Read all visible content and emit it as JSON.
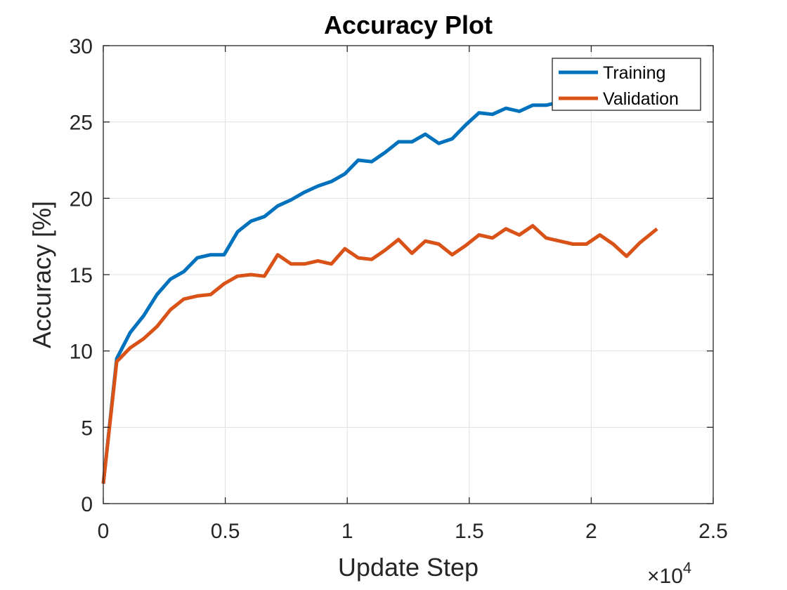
{
  "chart_data": {
    "type": "line",
    "title": "Accuracy Plot",
    "xlabel": "Update Step",
    "ylabel": "Accuracy [%]",
    "x_multiplier_label": {
      "base": "×10",
      "exponent": "4"
    },
    "xlim": [
      0,
      25000
    ],
    "ylim": [
      0,
      30
    ],
    "xticks": [
      0,
      5000,
      10000,
      15000,
      20000,
      25000
    ],
    "xtick_labels": [
      "0",
      "0.5",
      "1",
      "1.5",
      "2",
      "2.5"
    ],
    "yticks": [
      0,
      5,
      10,
      15,
      20,
      25,
      30
    ],
    "ytick_labels": [
      "0",
      "5",
      "10",
      "15",
      "20",
      "25",
      "30"
    ],
    "grid": true,
    "legend_position": "top-right",
    "series": [
      {
        "name": "Training",
        "color": "#0072BD",
        "x": [
          0,
          550,
          1100,
          1650,
          2200,
          2750,
          3300,
          3850,
          4400,
          4950,
          5500,
          6050,
          6600,
          7150,
          7700,
          8250,
          8800,
          9350,
          9900,
          10450,
          11000,
          11550,
          12100,
          12650,
          13200,
          13750,
          14300,
          14850,
          15400,
          15950,
          16500,
          17050,
          17600,
          18150,
          18700,
          19250,
          19800,
          20350,
          20900,
          21450,
          22000,
          22700
        ],
        "y": [
          1.3,
          9.5,
          11.2,
          12.3,
          13.7,
          14.7,
          15.2,
          16.1,
          16.3,
          16.3,
          17.8,
          18.5,
          18.8,
          19.5,
          19.9,
          20.4,
          20.8,
          21.1,
          21.6,
          22.5,
          22.4,
          23.0,
          23.7,
          23.7,
          24.2,
          23.6,
          23.9,
          24.8,
          25.6,
          25.5,
          25.9,
          25.7,
          26.1,
          26.1,
          26.3,
          26.6,
          26.4,
          26.9,
          26.8,
          27.2,
          27.4,
          27.6
        ]
      },
      {
        "name": "Validation",
        "color": "#D95319",
        "x": [
          0,
          550,
          1100,
          1650,
          2200,
          2750,
          3300,
          3850,
          4400,
          4950,
          5500,
          6050,
          6600,
          7150,
          7700,
          8250,
          8800,
          9350,
          9900,
          10450,
          11000,
          11550,
          12100,
          12650,
          13200,
          13750,
          14300,
          14850,
          15400,
          15950,
          16500,
          17050,
          17600,
          18150,
          18700,
          19250,
          19800,
          20350,
          20900,
          21450,
          22000,
          22700
        ],
        "y": [
          1.3,
          9.3,
          10.2,
          10.8,
          11.6,
          12.7,
          13.4,
          13.6,
          13.7,
          14.4,
          14.9,
          15.0,
          14.9,
          16.3,
          15.7,
          15.7,
          15.9,
          15.7,
          16.7,
          16.1,
          16.0,
          16.6,
          17.3,
          16.4,
          17.2,
          17.0,
          16.3,
          16.9,
          17.6,
          17.4,
          18.0,
          17.6,
          18.2,
          17.4,
          17.2,
          17.0,
          17.0,
          17.6,
          17.0,
          16.2,
          17.1,
          18.0
        ]
      }
    ]
  }
}
